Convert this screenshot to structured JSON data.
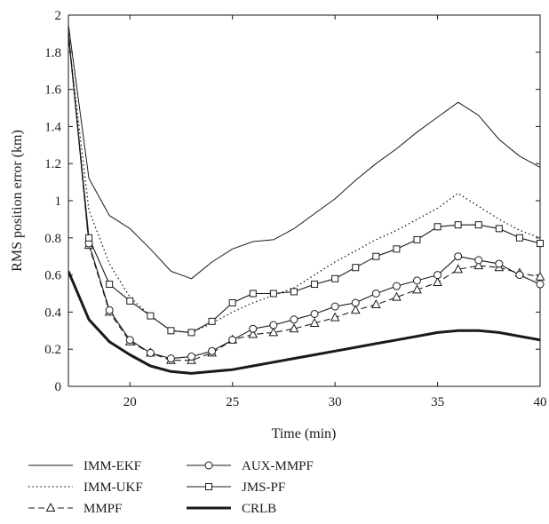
{
  "chart_data": {
    "type": "line",
    "title": "",
    "xlabel": "Time (min)",
    "ylabel": "RMS position error (km)",
    "xlim": [
      17,
      40
    ],
    "ylim": [
      0,
      2
    ],
    "xticks": [
      20,
      25,
      30,
      35,
      40
    ],
    "yticks": [
      0,
      0.2,
      0.4,
      0.6,
      0.8,
      1,
      1.2,
      1.4,
      1.6,
      1.8,
      2
    ],
    "grid": false,
    "legend_position": "bottom",
    "x": [
      17,
      18,
      19,
      20,
      21,
      22,
      23,
      24,
      25,
      26,
      27,
      28,
      29,
      30,
      31,
      32,
      33,
      34,
      35,
      36,
      37,
      38,
      39,
      40
    ],
    "series": [
      {
        "name": "IMM-EKF",
        "style": "thin-solid",
        "marker": "none",
        "values": [
          1.95,
          1.12,
          0.92,
          0.85,
          0.74,
          0.62,
          0.58,
          0.67,
          0.74,
          0.78,
          0.79,
          0.85,
          0.93,
          1.01,
          1.11,
          1.2,
          1.28,
          1.37,
          1.45,
          1.53,
          1.46,
          1.33,
          1.24,
          1.18
        ]
      },
      {
        "name": "IMM-UKF",
        "style": "dotted",
        "marker": "none",
        "values": [
          1.88,
          0.95,
          0.66,
          0.48,
          0.38,
          0.3,
          0.29,
          0.34,
          0.4,
          0.45,
          0.49,
          0.53,
          0.6,
          0.67,
          0.73,
          0.79,
          0.84,
          0.9,
          0.96,
          1.04,
          0.97,
          0.9,
          0.84,
          0.8
        ]
      },
      {
        "name": "MMPF",
        "style": "dashed",
        "marker": "triangle",
        "values": [
          1.92,
          0.76,
          0.4,
          0.24,
          0.18,
          0.14,
          0.14,
          0.18,
          0.25,
          0.28,
          0.29,
          0.31,
          0.34,
          0.37,
          0.41,
          0.44,
          0.48,
          0.52,
          0.56,
          0.63,
          0.65,
          0.64,
          0.61,
          0.59
        ]
      },
      {
        "name": "AUX-MMPF",
        "style": "solid",
        "marker": "circle",
        "values": [
          1.9,
          0.77,
          0.41,
          0.25,
          0.18,
          0.15,
          0.16,
          0.19,
          0.25,
          0.31,
          0.33,
          0.36,
          0.39,
          0.43,
          0.45,
          0.5,
          0.54,
          0.57,
          0.6,
          0.7,
          0.68,
          0.66,
          0.6,
          0.55
        ]
      },
      {
        "name": "JMS-PF",
        "style": "solid",
        "marker": "square",
        "values": [
          1.9,
          0.8,
          0.55,
          0.46,
          0.38,
          0.3,
          0.29,
          0.35,
          0.45,
          0.5,
          0.5,
          0.51,
          0.55,
          0.58,
          0.64,
          0.7,
          0.74,
          0.79,
          0.86,
          0.87,
          0.87,
          0.85,
          0.8,
          0.77
        ]
      },
      {
        "name": "CRLB",
        "style": "thick-solid",
        "marker": "none",
        "values": [
          0.62,
          0.36,
          0.24,
          0.17,
          0.11,
          0.08,
          0.07,
          0.08,
          0.09,
          0.11,
          0.13,
          0.15,
          0.17,
          0.19,
          0.21,
          0.23,
          0.25,
          0.27,
          0.29,
          0.3,
          0.3,
          0.29,
          0.27,
          0.25
        ]
      }
    ]
  }
}
